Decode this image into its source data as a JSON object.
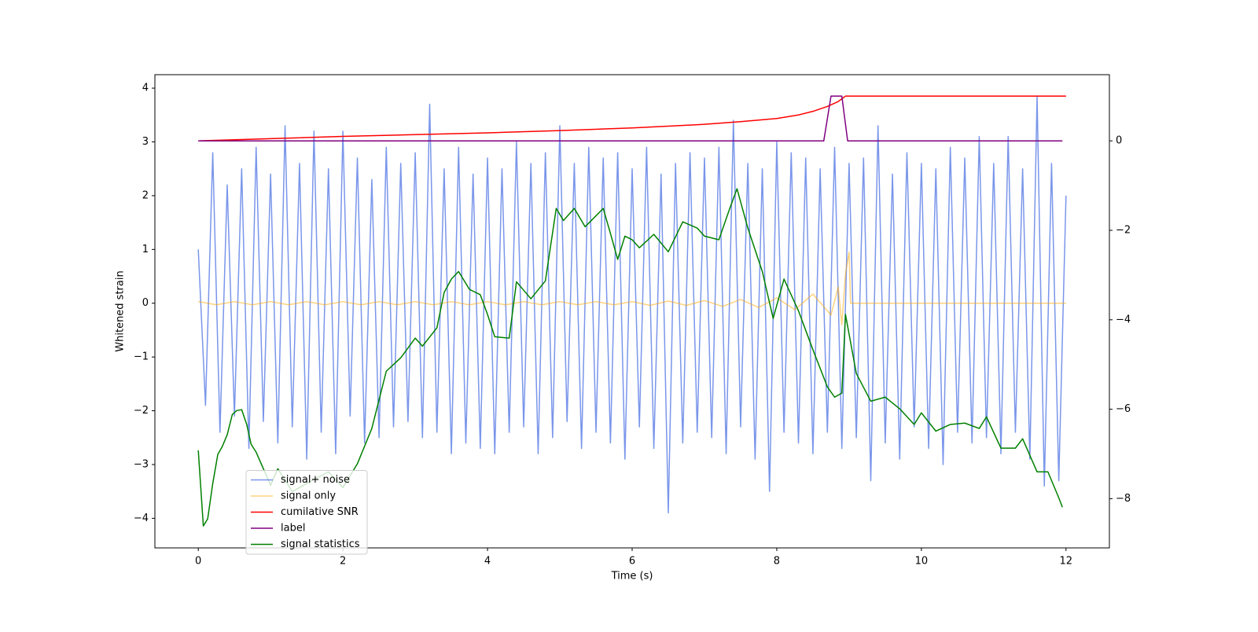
{
  "chart_data": {
    "type": "line",
    "xlabel": "Time (s)",
    "ylabel": "Whitened strain",
    "xlim": [
      -0.6,
      12.6
    ],
    "xticks": [
      0,
      2,
      4,
      6,
      8,
      10,
      12
    ],
    "ylim": [
      -4.55,
      4.25
    ],
    "yticks": [
      {
        "value": -4,
        "label": "−4"
      },
      {
        "value": -3,
        "label": "−3"
      },
      {
        "value": -2,
        "label": "−2"
      },
      {
        "value": -1,
        "label": "−1"
      },
      0,
      1,
      2,
      3,
      4
    ],
    "y2lim": [
      -9.1,
      1.48
    ],
    "y2ticks": [
      {
        "value": -8,
        "label": "−8"
      },
      {
        "value": -6,
        "label": "−6"
      },
      {
        "value": -4,
        "label": "−4"
      },
      {
        "value": -2,
        "label": "−2"
      },
      0
    ],
    "legend": "lower left",
    "series": [
      {
        "name": "signal+ noise",
        "color": "#4169e1",
        "opacity": 0.7,
        "x": [
          0,
          0.1,
          0.2,
          0.3,
          0.4,
          0.5,
          0.6,
          0.7,
          0.8,
          0.9,
          1,
          1.1,
          1.2,
          1.3,
          1.4,
          1.5,
          1.6,
          1.7,
          1.8,
          1.9,
          2,
          2.1,
          2.2,
          2.3,
          2.4,
          2.5,
          2.6,
          2.7,
          2.8,
          2.9,
          3,
          3.1,
          3.2,
          3.3,
          3.4,
          3.5,
          3.6,
          3.7,
          3.8,
          3.9,
          4,
          4.1,
          4.2,
          4.3,
          4.4,
          4.5,
          4.6,
          4.7,
          4.8,
          4.9,
          5,
          5.1,
          5.2,
          5.3,
          5.4,
          5.5,
          5.6,
          5.7,
          5.8,
          5.9,
          6,
          6.1,
          6.2,
          6.3,
          6.4,
          6.5,
          6.6,
          6.7,
          6.8,
          6.9,
          7,
          7.1,
          7.2,
          7.3,
          7.4,
          7.5,
          7.6,
          7.7,
          7.8,
          7.9,
          8,
          8.1,
          8.2,
          8.3,
          8.4,
          8.5,
          8.6,
          8.7,
          8.8,
          8.9,
          9,
          9.1,
          9.2,
          9.3,
          9.4,
          9.5,
          9.6,
          9.7,
          9.8,
          9.9,
          10,
          10.1,
          10.2,
          10.3,
          10.4,
          10.5,
          10.6,
          10.7,
          10.8,
          10.9,
          11,
          11.1,
          11.2,
          11.3,
          11.4,
          11.5,
          11.6,
          11.7,
          11.8,
          11.9,
          12
        ],
        "values": [
          1.0,
          -1.9,
          2.8,
          -2.4,
          2.2,
          -2.1,
          2.5,
          -2.7,
          2.9,
          -2.2,
          2.4,
          -2.6,
          3.3,
          -2.3,
          2.6,
          -2.9,
          3.2,
          -2.4,
          2.5,
          -2.8,
          3.2,
          -2.1,
          2.7,
          -2.6,
          2.3,
          -2.5,
          2.9,
          -2.3,
          2.6,
          -2.2,
          2.8,
          -2.5,
          3.7,
          -2.4,
          2.5,
          -2.8,
          2.9,
          -2.6,
          2.4,
          -2.7,
          2.7,
          -2.8,
          2.5,
          -2.4,
          3.0,
          -2.3,
          2.6,
          -2.8,
          2.8,
          -2.5,
          3.3,
          -2.2,
          2.6,
          -2.7,
          2.9,
          -2.4,
          2.7,
          -2.6,
          2.8,
          -2.9,
          2.5,
          -2.3,
          2.9,
          -2.7,
          2.4,
          -3.9,
          2.6,
          -2.6,
          2.8,
          -2.4,
          2.7,
          -2.5,
          2.9,
          -2.8,
          3.4,
          -2.3,
          2.6,
          -2.9,
          2.5,
          -3.5,
          3.0,
          -2.4,
          2.8,
          -2.6,
          2.7,
          -2.8,
          2.5,
          -2.4,
          2.9,
          -2.7,
          2.6,
          -2.5,
          2.7,
          -3.3,
          3.3,
          -2.6,
          2.4,
          -2.9,
          2.8,
          -2.3,
          2.6,
          -2.7,
          2.5,
          -3.0,
          2.9,
          -2.4,
          2.7,
          -2.6,
          3.1,
          -2.5,
          2.6,
          -2.8,
          3.1,
          -2.4,
          2.5,
          -2.9,
          3.85,
          -3.4,
          2.6,
          -3.3,
          2.0
        ]
      },
      {
        "name": "signal only",
        "color": "#ffa500",
        "opacity": 0.5,
        "x": [
          0,
          0.25,
          0.5,
          0.75,
          1,
          1.25,
          1.5,
          1.75,
          2,
          2.25,
          2.5,
          2.75,
          3,
          3.25,
          3.5,
          3.75,
          4,
          4.25,
          4.5,
          4.75,
          5,
          5.25,
          5.5,
          5.75,
          6,
          6.25,
          6.5,
          6.75,
          7,
          7.25,
          7.5,
          7.75,
          8,
          8.25,
          8.5,
          8.75,
          8.85,
          8.9,
          8.95,
          9.0,
          9.02,
          12
        ],
        "values": [
          0.03,
          -0.03,
          0.03,
          -0.03,
          0.03,
          -0.03,
          0.03,
          -0.03,
          0.03,
          -0.03,
          0.03,
          -0.03,
          0.03,
          -0.03,
          0.03,
          -0.03,
          0.03,
          -0.03,
          0.03,
          -0.03,
          0.03,
          -0.03,
          0.03,
          -0.03,
          0.03,
          -0.04,
          0.04,
          -0.04,
          0.05,
          -0.06,
          0.07,
          -0.08,
          0.1,
          -0.12,
          0.17,
          -0.22,
          0.3,
          -0.4,
          0.55,
          0.95,
          0,
          0
        ]
      },
      {
        "name": "cumilative SNR",
        "color": "#ff0000",
        "axis": "y2",
        "x": [
          0,
          1,
          2,
          3,
          4,
          5,
          6,
          7,
          7.5,
          8,
          8.3,
          8.5,
          8.7,
          8.85,
          8.95,
          9.0,
          12
        ],
        "values": [
          0,
          0.05,
          0.1,
          0.14,
          0.18,
          0.23,
          0.29,
          0.37,
          0.43,
          0.5,
          0.58,
          0.66,
          0.77,
          0.88,
          1.0,
          1.0,
          1.0
        ]
      },
      {
        "name": "label",
        "color": "#800080",
        "axis": "y2",
        "x": [
          0,
          8.65,
          8.75,
          8.9,
          8.98,
          11.95
        ],
        "values": [
          0,
          0,
          1,
          1,
          0,
          0
        ]
      },
      {
        "name": "signal statistics",
        "color": "#008000",
        "axis": "y2",
        "x": [
          0,
          0.07,
          0.13,
          0.2,
          0.27,
          0.33,
          0.4,
          0.47,
          0.53,
          0.6,
          0.67,
          0.73,
          0.8,
          1.0,
          1.1,
          1.3,
          1.6,
          1.8,
          2.0,
          2.2,
          2.4,
          2.6,
          2.8,
          3.0,
          3.1,
          3.3,
          3.4,
          3.5,
          3.6,
          3.75,
          3.9,
          4.0,
          4.1,
          4.3,
          4.4,
          4.6,
          4.8,
          4.95,
          5.05,
          5.2,
          5.35,
          5.6,
          5.7,
          5.8,
          5.9,
          6.0,
          6.1,
          6.3,
          6.5,
          6.7,
          6.9,
          7.0,
          7.2,
          7.35,
          7.45,
          7.6,
          7.8,
          7.95,
          8.1,
          8.3,
          8.5,
          8.7,
          8.8,
          8.9,
          8.95,
          9.1,
          9.3,
          9.5,
          9.7,
          9.9,
          10.0,
          10.2,
          10.4,
          10.6,
          10.8,
          10.9,
          11.1,
          11.3,
          11.4,
          11.6,
          11.75,
          11.9,
          11.95
        ],
        "values": [
          -6.92,
          -8.61,
          -8.45,
          -7.66,
          -7.01,
          -6.84,
          -6.57,
          -6.12,
          -6.03,
          -6.01,
          -6.34,
          -6.78,
          -6.96,
          -7.7,
          -7.33,
          -7.84,
          -7.57,
          -7.4,
          -7.75,
          -7.22,
          -6.43,
          -5.15,
          -4.85,
          -4.41,
          -4.59,
          -4.18,
          -3.39,
          -3.09,
          -2.92,
          -3.32,
          -3.44,
          -3.88,
          -4.38,
          -4.41,
          -3.15,
          -3.53,
          -3.13,
          -1.51,
          -1.78,
          -1.51,
          -1.92,
          -1.51,
          -2.07,
          -2.65,
          -2.13,
          -2.21,
          -2.39,
          -2.09,
          -2.48,
          -1.81,
          -1.95,
          -2.13,
          -2.21,
          -1.51,
          -1.07,
          -1.95,
          -2.92,
          -3.97,
          -3.09,
          -3.8,
          -4.67,
          -5.5,
          -5.73,
          -5.64,
          -3.88,
          -5.2,
          -5.82,
          -5.73,
          -5.99,
          -6.34,
          -6.08,
          -6.49,
          -6.34,
          -6.31,
          -6.43,
          -6.17,
          -6.87,
          -6.87,
          -6.66,
          -7.4,
          -7.4,
          -7.98,
          -8.19
        ]
      }
    ]
  }
}
